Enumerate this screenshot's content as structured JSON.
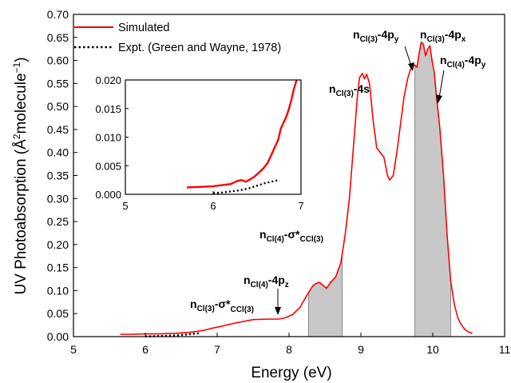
{
  "chart_data": [
    {
      "type": "line",
      "xlabel": "Energy (eV)",
      "ylabel_parts": [
        "UV Photoabsorption (Å",
        "2",
        "molecule",
        "−1",
        ")"
      ],
      "xlim": [
        5,
        11
      ],
      "ylim": [
        0,
        0.7
      ],
      "x_ticks": [
        "5",
        "6",
        "7",
        "8",
        "9",
        "10",
        "11"
      ],
      "y_ticks": [
        "0.00",
        "0.05",
        "0.10",
        "0.15",
        "0.20",
        "0.25",
        "0.30",
        "0.35",
        "0.40",
        "0.45",
        "0.50",
        "0.55",
        "0.60",
        "0.65",
        "0.70"
      ],
      "legend": [
        "Simulated",
        "Expt. (Green and Wayne, 1978)"
      ],
      "colors": {
        "simulated": "#ff0000",
        "experiment": "#000000",
        "shade": "#c8c8c8"
      },
      "series": [
        {
          "name": "Simulated",
          "x": [
            5.65,
            5.8,
            6.0,
            6.2,
            6.4,
            6.6,
            6.75,
            6.85,
            6.95,
            7.05,
            7.15,
            7.3,
            7.5,
            7.7,
            7.85,
            7.95,
            8.05,
            8.15,
            8.22,
            8.28,
            8.33,
            8.37,
            8.42,
            8.47,
            8.52,
            8.58,
            8.65,
            8.72,
            8.78,
            8.84,
            8.9,
            8.95,
            8.98,
            9.02,
            9.05,
            9.08,
            9.12,
            9.17,
            9.22,
            9.27,
            9.32,
            9.37,
            9.4,
            9.45,
            9.5,
            9.55,
            9.6,
            9.65,
            9.7,
            9.75,
            9.78,
            9.81,
            9.84,
            9.87,
            9.9,
            9.93,
            9.96,
            9.99,
            10.02,
            10.05,
            10.1,
            10.15,
            10.2,
            10.25,
            10.3,
            10.35,
            10.4,
            10.45,
            10.5,
            10.55
          ],
          "y": [
            0.005,
            0.005,
            0.006,
            0.006,
            0.007,
            0.009,
            0.012,
            0.015,
            0.019,
            0.022,
            0.026,
            0.031,
            0.037,
            0.038,
            0.038,
            0.041,
            0.048,
            0.063,
            0.082,
            0.098,
            0.11,
            0.115,
            0.118,
            0.112,
            0.105,
            0.118,
            0.13,
            0.16,
            0.22,
            0.3,
            0.42,
            0.52,
            0.562,
            0.572,
            0.56,
            0.57,
            0.55,
            0.47,
            0.41,
            0.4,
            0.39,
            0.35,
            0.34,
            0.35,
            0.4,
            0.46,
            0.52,
            0.56,
            0.585,
            0.59,
            0.585,
            0.615,
            0.64,
            0.635,
            0.61,
            0.625,
            0.632,
            0.6,
            0.575,
            0.525,
            0.45,
            0.35,
            0.22,
            0.12,
            0.07,
            0.04,
            0.025,
            0.015,
            0.01,
            0.007
          ]
        },
        {
          "name": "Expt. (Green and Wayne, 1978)",
          "x": [
            6.0,
            6.1,
            6.2,
            6.3,
            6.4,
            6.5,
            6.6,
            6.7,
            6.75
          ],
          "y": [
            0.0005,
            0.0008,
            0.0012,
            0.0018,
            0.0025,
            0.0035,
            0.005,
            0.0065,
            0.0075
          ]
        }
      ],
      "shaded_ranges": [
        [
          8.27,
          8.74
        ],
        [
          9.75,
          10.25
        ]
      ],
      "annotations": [
        {
          "main": "n",
          "sub": "Cl(3)",
          "rest": "-σ*",
          "tail": "CCl(3)"
        },
        {
          "main": "n",
          "sub": "Cl(4)",
          "rest": "-4p",
          "tail": "z"
        },
        {
          "main": "n",
          "sub": "Cl(4)",
          "rest": "-σ*",
          "tail": "CCl(3)"
        },
        {
          "main": "n",
          "sub": "Cl(3)",
          "rest": "-4s",
          "tail": ""
        },
        {
          "main": "n",
          "sub": "Cl(3)",
          "rest": "-4p",
          "tail": "y"
        },
        {
          "main": "n",
          "sub": "Cl(3)",
          "rest": "-4p",
          "tail": "x"
        },
        {
          "main": "n",
          "sub": "Cl(4)",
          "rest": "-4p",
          "tail": "y"
        }
      ]
    },
    {
      "type": "line",
      "xlim": [
        5,
        7
      ],
      "ylim": [
        0,
        0.02
      ],
      "x_ticks": [
        "5",
        "6",
        "7"
      ],
      "y_ticks": [
        "0.000",
        "0.005",
        "0.010",
        "0.015",
        "0.020"
      ],
      "series": [
        {
          "name": "Simulated",
          "x": [
            5.7,
            5.85,
            6.0,
            6.1,
            6.2,
            6.27,
            6.32,
            6.37,
            6.42,
            6.47,
            6.52,
            6.57,
            6.62,
            6.66,
            6.7,
            6.74,
            6.77,
            6.8,
            6.83,
            6.86,
            6.89,
            6.92,
            6.95
          ],
          "y": [
            0.0012,
            0.0013,
            0.0014,
            0.0016,
            0.0018,
            0.0023,
            0.0025,
            0.0022,
            0.0026,
            0.0031,
            0.0038,
            0.0045,
            0.0055,
            0.0068,
            0.0082,
            0.0095,
            0.0115,
            0.0125,
            0.0135,
            0.0148,
            0.0165,
            0.0185,
            0.02
          ]
        },
        {
          "name": "Expt. (Green and Wayne, 1978)",
          "x": [
            6.0,
            6.1,
            6.2,
            6.3,
            6.4,
            6.5,
            6.6,
            6.75
          ],
          "y": [
            0.0002,
            0.0003,
            0.0005,
            0.0007,
            0.001,
            0.0015,
            0.002,
            0.0025
          ]
        }
      ]
    }
  ]
}
